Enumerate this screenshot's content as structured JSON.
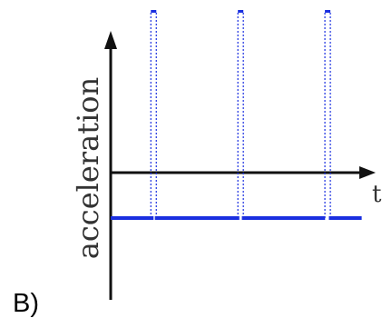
{
  "option_label": "B)",
  "chart_data": {
    "type": "line",
    "ylabel": "acceleration",
    "xlabel": "t",
    "grid": false,
    "ylim": [
      -1,
      1.6
    ],
    "xlim": [
      0,
      10
    ],
    "series": [
      {
        "values": [
          {
            "t_start": 0.0,
            "t_end": 1.7,
            "acceleration": -0.5
          },
          {
            "t_start": 1.75,
            "t_end": 5.1,
            "acceleration": -0.5
          },
          {
            "t_start": 5.2,
            "t_end": 8.5,
            "acceleration": -0.5
          },
          {
            "t_start": 8.65,
            "t_end": 9.95,
            "acceleration": -0.5
          }
        ],
        "impulses": [
          1.7,
          5.15,
          8.6
        ],
        "color": "#1a2fe0"
      }
    ]
  }
}
